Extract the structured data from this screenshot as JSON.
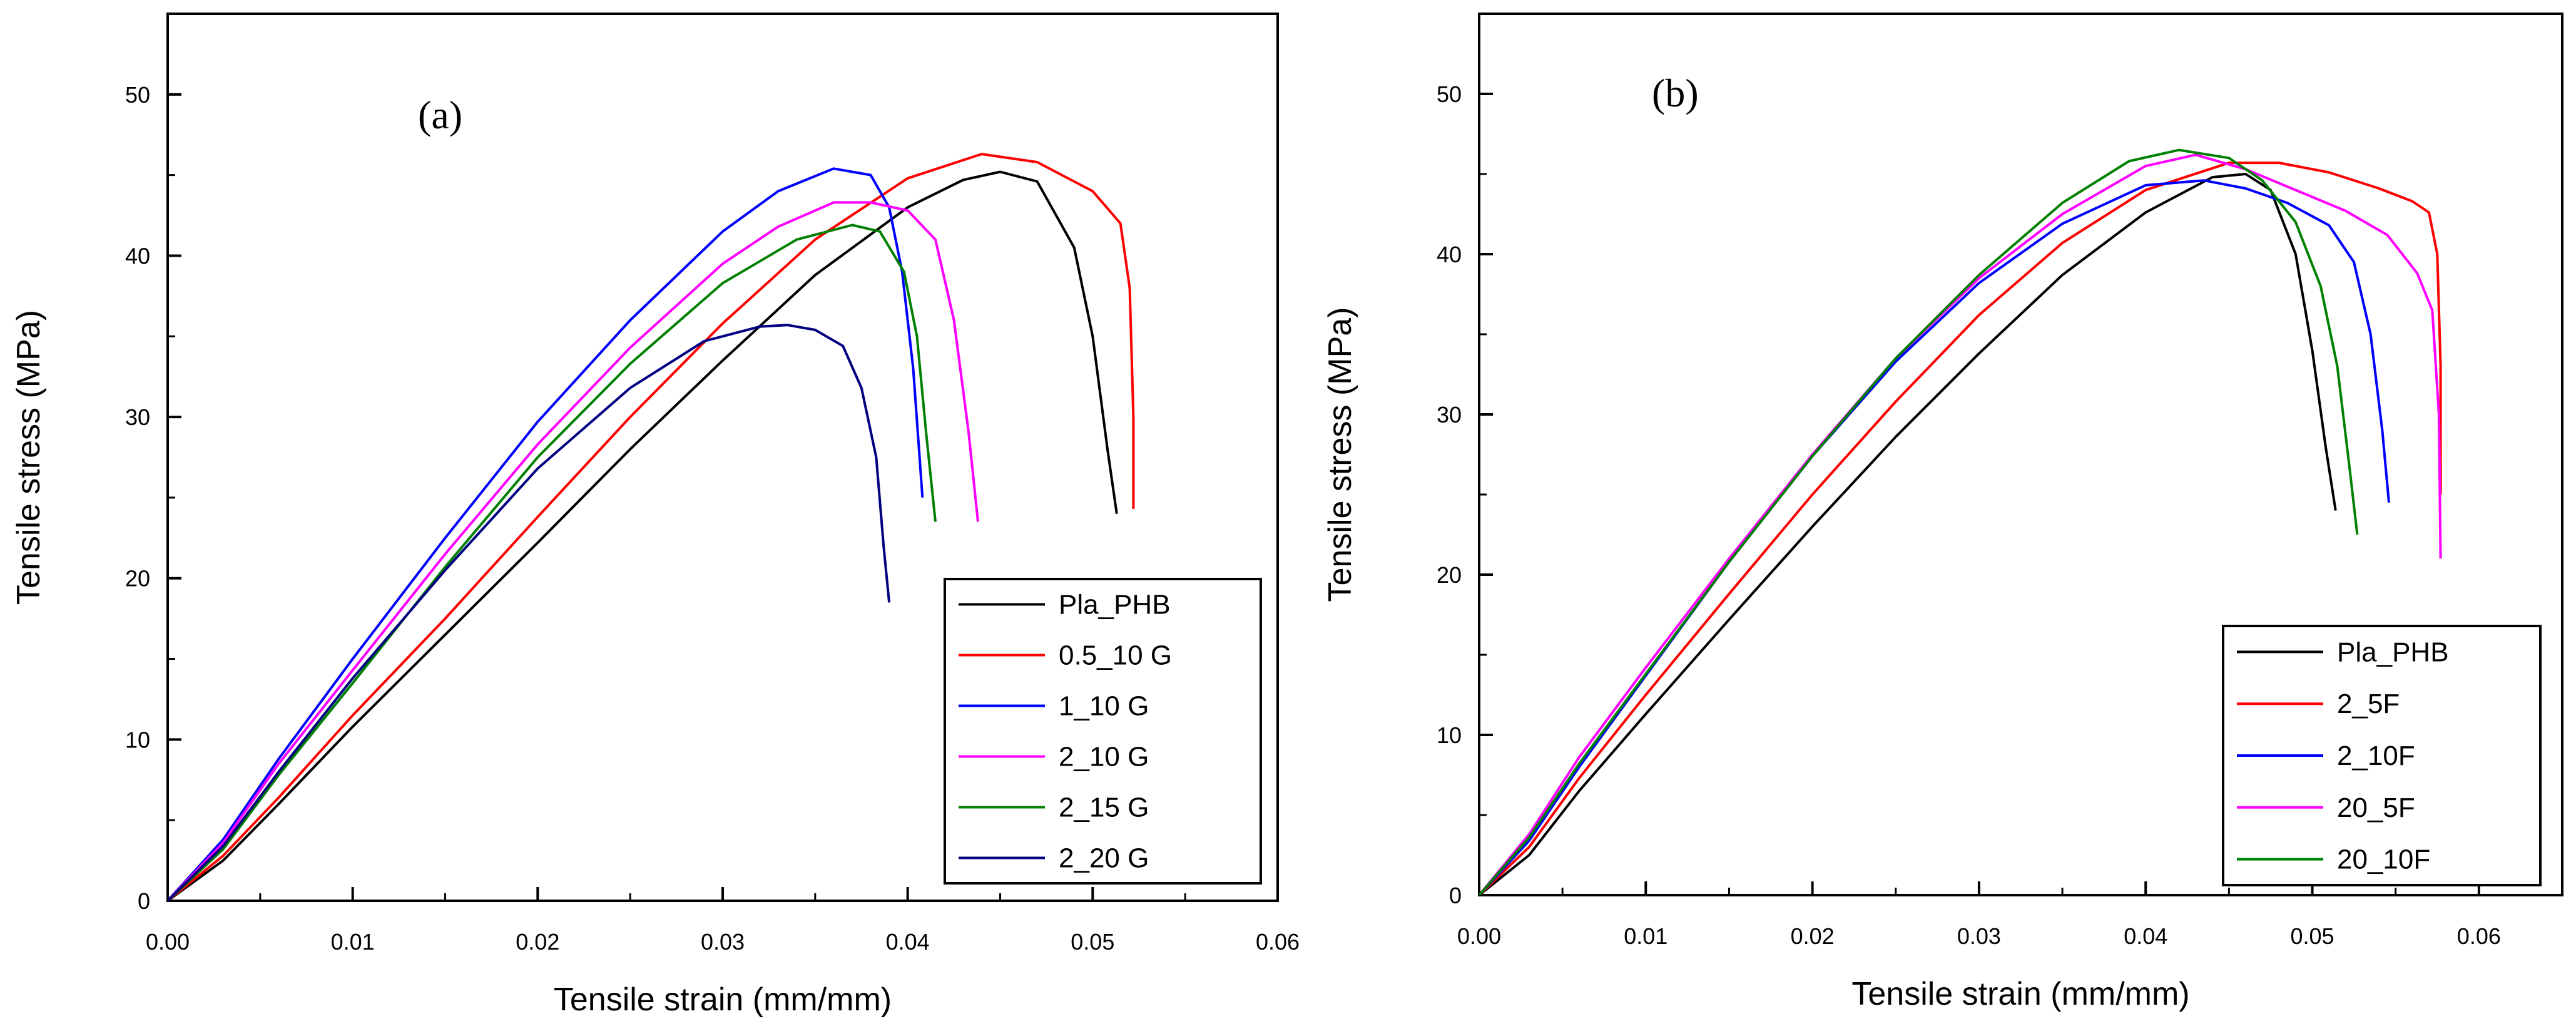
{
  "chart_data": [
    {
      "type": "line",
      "panel_label": "(a)",
      "xlabel": "Tensile strain (mm/mm)",
      "ylabel": "Tensile stress (MPa)",
      "xlim": [
        0,
        0.06
      ],
      "ylim": [
        0,
        55
      ],
      "xticks": [
        0,
        0.01,
        0.02,
        0.03,
        0.04,
        0.05,
        0.06
      ],
      "xtick_labels": [
        "0.00",
        "0.01",
        "0.02",
        "0.03",
        "0.04",
        "0.05",
        "0.06"
      ],
      "yticks": [
        0,
        10,
        20,
        30,
        40,
        50
      ],
      "ytick_labels": [
        "0",
        "10",
        "20",
        "30",
        "40",
        "50"
      ],
      "grid": false,
      "legend_position": "bottom-right",
      "series": [
        {
          "name": "Pla_PHB",
          "color": "#000000",
          "x": [
            0,
            0.003,
            0.006,
            0.01,
            0.015,
            0.02,
            0.025,
            0.03,
            0.035,
            0.04,
            0.043,
            0.045,
            0.047,
            0.049,
            0.05,
            0.0508,
            0.0513
          ],
          "y": [
            0,
            2.5,
            6,
            10.8,
            16.5,
            22.2,
            28,
            33.5,
            38.8,
            43,
            44.7,
            45.2,
            44.6,
            40.5,
            35,
            28,
            24
          ]
        },
        {
          "name": "0.5_10 G",
          "color": "#ff0000",
          "x": [
            0,
            0.003,
            0.006,
            0.01,
            0.015,
            0.02,
            0.025,
            0.03,
            0.035,
            0.04,
            0.044,
            0.047,
            0.05,
            0.0515,
            0.052,
            0.0522,
            0.0522
          ],
          "y": [
            0,
            2.8,
            6.4,
            11.5,
            17.5,
            23.8,
            30,
            35.8,
            41,
            44.8,
            46.3,
            45.8,
            44,
            42,
            38,
            30,
            24.3
          ]
        },
        {
          "name": "1_10 G",
          "color": "#0000ff",
          "x": [
            0,
            0.003,
            0.006,
            0.01,
            0.015,
            0.02,
            0.025,
            0.03,
            0.033,
            0.036,
            0.038,
            0.039,
            0.0397,
            0.0403,
            0.0408
          ],
          "y": [
            0,
            3.8,
            8.8,
            15,
            22.5,
            29.7,
            36,
            41.5,
            44,
            45.4,
            45,
            43,
            39,
            33,
            25
          ]
        },
        {
          "name": "2_10 G",
          "color": "#ff00ff",
          "x": [
            0,
            0.003,
            0.006,
            0.01,
            0.015,
            0.02,
            0.025,
            0.03,
            0.033,
            0.036,
            0.038,
            0.04,
            0.0415,
            0.0425,
            0.0433,
            0.0438
          ],
          "y": [
            0,
            3.6,
            8.5,
            14.3,
            21.5,
            28.3,
            34.3,
            39.5,
            41.8,
            43.3,
            43.3,
            42.8,
            41,
            36,
            29,
            23.5
          ]
        },
        {
          "name": "2_15 G",
          "color": "#008000",
          "x": [
            0,
            0.003,
            0.006,
            0.01,
            0.015,
            0.02,
            0.025,
            0.03,
            0.034,
            0.037,
            0.0385,
            0.0398,
            0.0405,
            0.041,
            0.0415
          ],
          "y": [
            0,
            3.2,
            7.8,
            13.5,
            20.7,
            27.5,
            33.3,
            38.3,
            41,
            41.9,
            41.5,
            39,
            35,
            29,
            23.5
          ]
        },
        {
          "name": "2_20 G",
          "color": "#000080",
          "x": [
            0,
            0.003,
            0.006,
            0.01,
            0.015,
            0.02,
            0.025,
            0.029,
            0.032,
            0.0335,
            0.035,
            0.0365,
            0.0375,
            0.0383,
            0.0387,
            0.039
          ],
          "y": [
            0,
            3.4,
            8,
            13.8,
            20.5,
            26.8,
            31.8,
            34.7,
            35.6,
            35.7,
            35.4,
            34.4,
            31.8,
            27.5,
            22,
            18.5
          ]
        }
      ]
    },
    {
      "type": "line",
      "panel_label": "(b)",
      "xlabel": "Tensile strain (mm/mm)",
      "ylabel": "Tensile stress (MPa)",
      "xlim": [
        0,
        0.065
      ],
      "ylim": [
        0,
        55
      ],
      "xticks": [
        0,
        0.01,
        0.02,
        0.03,
        0.04,
        0.05,
        0.06
      ],
      "xtick_labels": [
        "0.00",
        "0.01",
        "0.02",
        "0.03",
        "0.04",
        "0.05",
        "0.06"
      ],
      "yticks": [
        0,
        10,
        20,
        30,
        40,
        50
      ],
      "ytick_labels": [
        "0",
        "10",
        "20",
        "30",
        "40",
        "50"
      ],
      "grid": false,
      "legend_position": "bottom-right",
      "series": [
        {
          "name": "Pla_PHB",
          "color": "#000000",
          "x": [
            0,
            0.003,
            0.006,
            0.01,
            0.015,
            0.02,
            0.025,
            0.03,
            0.035,
            0.04,
            0.044,
            0.046,
            0.0475,
            0.049,
            0.05,
            0.0508,
            0.0514
          ],
          "y": [
            0,
            2.5,
            6.5,
            11.3,
            17.2,
            23,
            28.6,
            33.8,
            38.7,
            42.6,
            44.8,
            45,
            44,
            40,
            34,
            28,
            24
          ]
        },
        {
          "name": "2_5F",
          "color": "#ff0000",
          "x": [
            0,
            0.003,
            0.006,
            0.01,
            0.015,
            0.02,
            0.025,
            0.03,
            0.035,
            0.04,
            0.045,
            0.048,
            0.051,
            0.054,
            0.056,
            0.057,
            0.0575,
            0.0577,
            0.0577
          ],
          "y": [
            0,
            3,
            7.3,
            12.5,
            18.8,
            25,
            30.8,
            36.2,
            40.7,
            44,
            45.7,
            45.7,
            45.1,
            44.1,
            43.3,
            42.6,
            40,
            33,
            25
          ]
        },
        {
          "name": "2_10F",
          "color": "#0000ff",
          "x": [
            0,
            0.003,
            0.006,
            0.01,
            0.015,
            0.02,
            0.025,
            0.03,
            0.035,
            0.04,
            0.0435,
            0.046,
            0.0485,
            0.051,
            0.0525,
            0.0535,
            0.0542,
            0.0546
          ],
          "y": [
            0,
            3.4,
            8,
            13.7,
            20.8,
            27.4,
            33.3,
            38.2,
            41.9,
            44.3,
            44.6,
            44.1,
            43.2,
            41.8,
            39.5,
            35,
            29,
            24.5
          ]
        },
        {
          "name": "20_5F",
          "color": "#ff00ff",
          "x": [
            0,
            0.003,
            0.006,
            0.01,
            0.015,
            0.02,
            0.025,
            0.03,
            0.035,
            0.04,
            0.043,
            0.046,
            0.049,
            0.052,
            0.0545,
            0.0563,
            0.0572,
            0.0576,
            0.0577
          ],
          "y": [
            0,
            3.8,
            8.6,
            14.2,
            21,
            27.5,
            33.5,
            38.5,
            42.5,
            45.5,
            46.2,
            45.3,
            44,
            42.7,
            41.2,
            38.8,
            36.5,
            30,
            21
          ]
        },
        {
          "name": "20_10F",
          "color": "#008000",
          "x": [
            0,
            0.003,
            0.006,
            0.01,
            0.015,
            0.02,
            0.025,
            0.03,
            0.035,
            0.039,
            0.042,
            0.045,
            0.047,
            0.049,
            0.0505,
            0.0515,
            0.0522,
            0.0527
          ],
          "y": [
            0,
            3.6,
            8.2,
            13.8,
            20.8,
            27.4,
            33.5,
            38.7,
            43.2,
            45.8,
            46.5,
            46,
            44.6,
            42,
            38,
            33,
            27,
            22.5
          ]
        }
      ]
    }
  ]
}
